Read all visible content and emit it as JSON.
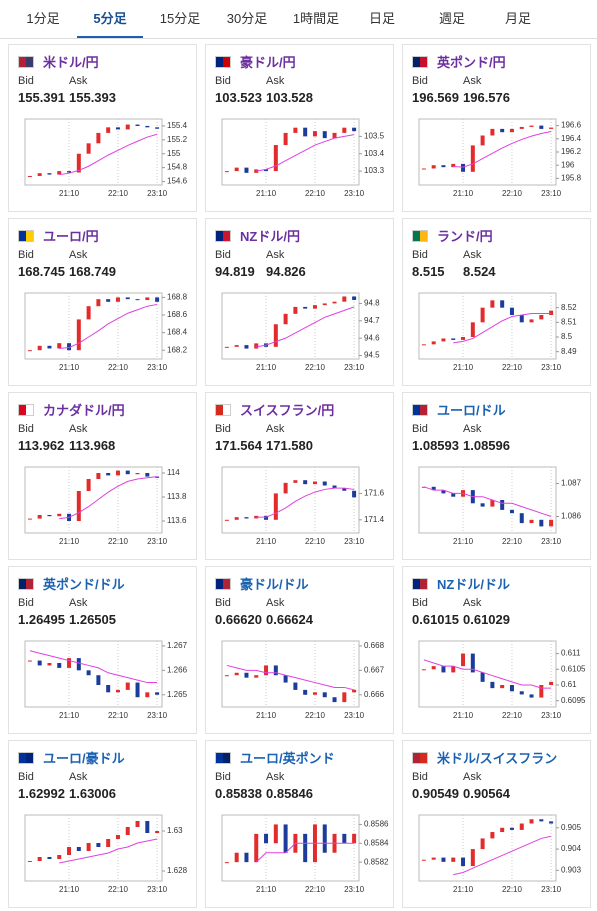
{
  "tabs": [
    "1分足",
    "5分足",
    "15分足",
    "30分足",
    "1時間足",
    "日足",
    "週足",
    "月足"
  ],
  "active_tab": 1,
  "labels": {
    "bid": "Bid",
    "ask": "Ask"
  },
  "cards": [
    {
      "pair": "米ドル/円",
      "title_color": "#6b2fa0",
      "flag_colors": [
        "#b22234",
        "#3c3b6e"
      ],
      "bid": "155.391",
      "ask": "155.393",
      "chart": {
        "categories": [
          null,
          null,
          null,
          null,
          "21:10",
          null,
          null,
          null,
          null,
          "22:10",
          null,
          null,
          null,
          "23:10"
        ],
        "values": [
          154.68,
          154.72,
          154.7,
          154.75,
          154.73,
          155.0,
          155.15,
          155.3,
          155.38,
          155.35,
          155.42,
          155.4,
          155.38,
          155.36
        ],
        "ma": [
          null,
          null,
          null,
          154.7,
          154.72,
          154.76,
          154.82,
          154.9,
          154.98,
          155.05,
          155.12,
          155.18,
          155.24,
          155.28
        ],
        "ylim": [
          154.55,
          155.5
        ],
        "yticks": [
          154.6,
          154.8,
          155,
          155.2,
          155.4
        ]
      }
    },
    {
      "pair": "豪ドル/円",
      "title_color": "#6b2fa0",
      "flag_colors": [
        "#00247d",
        "#cc0000"
      ],
      "bid": "103.523",
      "ask": "103.528",
      "chart": {
        "categories": [
          null,
          null,
          null,
          null,
          "21:10",
          null,
          null,
          null,
          null,
          "22:10",
          null,
          null,
          null,
          "23:10"
        ],
        "values": [
          103.3,
          103.32,
          103.29,
          103.31,
          103.3,
          103.45,
          103.52,
          103.55,
          103.5,
          103.53,
          103.49,
          103.52,
          103.55,
          103.53
        ],
        "ma": [
          null,
          null,
          null,
          103.3,
          103.31,
          103.33,
          103.36,
          103.39,
          103.42,
          103.45,
          103.47,
          103.49,
          103.5,
          103.51
        ],
        "ylim": [
          103.22,
          103.6
        ],
        "yticks": [
          103.3,
          103.4,
          103.5
        ]
      }
    },
    {
      "pair": "英ポンド/円",
      "title_color": "#6b2fa0",
      "flag_colors": [
        "#012169",
        "#c8102e"
      ],
      "bid": "196.569",
      "ask": "196.576",
      "chart": {
        "categories": [
          null,
          null,
          null,
          null,
          "21:10",
          null,
          null,
          null,
          null,
          "22:10",
          null,
          null,
          null,
          "23:10"
        ],
        "values": [
          195.95,
          196.0,
          195.97,
          196.02,
          195.9,
          196.3,
          196.45,
          196.55,
          196.5,
          196.55,
          196.58,
          196.6,
          196.55,
          196.57
        ],
        "ma": [
          null,
          null,
          null,
          195.98,
          195.97,
          196.02,
          196.1,
          196.18,
          196.26,
          196.33,
          196.39,
          196.44,
          196.48,
          196.51
        ],
        "ylim": [
          195.7,
          196.7
        ],
        "yticks": [
          195.8,
          196,
          196.2,
          196.4,
          196.6
        ]
      }
    },
    {
      "pair": "ユーロ/円",
      "title_color": "#6b2fa0",
      "flag_colors": [
        "#003399",
        "#ffcc00"
      ],
      "bid": "168.745",
      "ask": "168.749",
      "chart": {
        "categories": [
          null,
          null,
          null,
          null,
          "21:10",
          null,
          null,
          null,
          null,
          "22:10",
          null,
          null,
          null,
          "23:10"
        ],
        "values": [
          168.2,
          168.25,
          168.22,
          168.28,
          168.2,
          168.55,
          168.7,
          168.78,
          168.75,
          168.8,
          168.78,
          168.77,
          168.8,
          168.75
        ],
        "ma": [
          null,
          null,
          null,
          168.22,
          168.23,
          168.28,
          168.35,
          168.42,
          168.5,
          168.56,
          168.62,
          168.66,
          168.7,
          168.72
        ],
        "ylim": [
          168.1,
          168.85
        ],
        "yticks": [
          168.2,
          168.4,
          168.6,
          168.8
        ]
      }
    },
    {
      "pair": "NZドル/円",
      "title_color": "#6b2fa0",
      "flag_colors": [
        "#00247d",
        "#cc142b"
      ],
      "bid": "94.819",
      "ask": "94.826",
      "chart": {
        "categories": [
          null,
          null,
          null,
          null,
          "21:10",
          null,
          null,
          null,
          null,
          "22:10",
          null,
          null,
          null,
          "23:10"
        ],
        "values": [
          94.55,
          94.56,
          94.54,
          94.57,
          94.55,
          94.68,
          94.74,
          94.78,
          94.77,
          94.79,
          94.8,
          94.81,
          94.84,
          94.82
        ],
        "ma": [
          null,
          null,
          null,
          94.55,
          94.56,
          94.58,
          94.6,
          94.63,
          94.66,
          94.69,
          94.72,
          94.74,
          94.76,
          94.78
        ],
        "ylim": [
          94.48,
          94.86
        ],
        "yticks": [
          94.5,
          94.6,
          94.7,
          94.8
        ]
      }
    },
    {
      "pair": "ランド/円",
      "title_color": "#6b2fa0",
      "flag_colors": [
        "#007a4d",
        "#ffb612"
      ],
      "bid": "8.515",
      "ask": "8.524",
      "chart": {
        "categories": [
          null,
          null,
          null,
          null,
          "21:10",
          null,
          null,
          null,
          null,
          "22:10",
          null,
          null,
          null,
          "23:10"
        ],
        "values": [
          8.495,
          8.497,
          8.499,
          8.498,
          8.5,
          8.51,
          8.52,
          8.525,
          8.52,
          8.515,
          8.51,
          8.512,
          8.515,
          8.518
        ],
        "ma": [
          null,
          null,
          null,
          8.496,
          8.497,
          8.499,
          8.503,
          8.507,
          8.511,
          8.514,
          8.515,
          8.516,
          8.516,
          8.516
        ],
        "ylim": [
          8.485,
          8.53
        ],
        "yticks": [
          8.49,
          8.5,
          8.51,
          8.52
        ]
      }
    },
    {
      "pair": "カナダドル/円",
      "title_color": "#6b2fa0",
      "flag_colors": [
        "#d80621",
        "#ffffff"
      ],
      "bid": "113.962",
      "ask": "113.968",
      "chart": {
        "categories": [
          null,
          null,
          null,
          null,
          "21:10",
          null,
          null,
          null,
          null,
          "22:10",
          null,
          null,
          null,
          "23:10"
        ],
        "values": [
          113.62,
          113.65,
          113.64,
          113.66,
          113.6,
          113.85,
          113.95,
          114.0,
          113.98,
          114.02,
          113.99,
          114.0,
          113.97,
          113.96
        ],
        "ma": [
          null,
          null,
          null,
          113.62,
          113.63,
          113.67,
          113.72,
          113.78,
          113.84,
          113.89,
          113.93,
          113.95,
          113.96,
          113.97
        ],
        "ylim": [
          113.5,
          114.05
        ],
        "yticks": [
          113.6,
          113.8,
          114
        ]
      }
    },
    {
      "pair": "スイスフラン/円",
      "title_color": "#6b2fa0",
      "flag_colors": [
        "#d52b1e",
        "#ffffff"
      ],
      "bid": "171.564",
      "ask": "171.580",
      "chart": {
        "categories": [
          null,
          null,
          null,
          null,
          "21:10",
          null,
          null,
          null,
          null,
          "22:10",
          null,
          null,
          null,
          "23:10"
        ],
        "values": [
          171.4,
          171.42,
          171.41,
          171.43,
          171.4,
          171.6,
          171.68,
          171.7,
          171.67,
          171.69,
          171.66,
          171.64,
          171.62,
          171.57
        ],
        "ma": [
          null,
          null,
          null,
          171.42,
          171.42,
          171.45,
          171.49,
          171.54,
          171.58,
          171.61,
          171.63,
          171.64,
          171.64,
          171.63
        ],
        "ylim": [
          171.3,
          171.8
        ],
        "yticks": [
          171.4,
          171.6
        ]
      }
    },
    {
      "pair": "ユーロ/ドル",
      "title_color": "#1a62b0",
      "flag_colors": [
        "#003399",
        "#b22234"
      ],
      "bid": "1.08593",
      "ask": "1.08596",
      "chart": {
        "categories": [
          null,
          null,
          null,
          null,
          "21:10",
          null,
          null,
          null,
          null,
          "22:10",
          null,
          null,
          null,
          "23:10"
        ],
        "values": [
          1.0869,
          1.0868,
          1.0867,
          1.0866,
          1.0868,
          1.0864,
          1.0863,
          1.0865,
          1.0862,
          1.0861,
          1.0858,
          1.0859,
          1.0857,
          1.0859
        ],
        "ma": [
          1.0869,
          1.0868,
          1.0868,
          1.0867,
          1.0867,
          1.0866,
          1.0866,
          1.0865,
          1.0864,
          1.0864,
          1.0863,
          1.0862,
          1.0861,
          1.086
        ],
        "ylim": [
          1.0855,
          1.0875
        ],
        "yticks": [
          1.086,
          1.087
        ]
      }
    },
    {
      "pair": "英ポンド/ドル",
      "title_color": "#1a62b0",
      "flag_colors": [
        "#012169",
        "#b22234"
      ],
      "bid": "1.26495",
      "ask": "1.26505",
      "chart": {
        "categories": [
          null,
          null,
          null,
          null,
          "21:10",
          null,
          null,
          null,
          null,
          "22:10",
          null,
          null,
          null,
          "23:10"
        ],
        "values": [
          1.2664,
          1.2662,
          1.2663,
          1.2661,
          1.2665,
          1.266,
          1.2658,
          1.2654,
          1.2651,
          1.2652,
          1.2655,
          1.2649,
          1.2651,
          1.265
        ],
        "ma": [
          1.2668,
          1.2667,
          1.2666,
          1.2665,
          1.2664,
          1.2663,
          1.2662,
          1.2661,
          1.2659,
          1.2658,
          1.2657,
          1.2656,
          1.2655,
          1.2655
        ],
        "ylim": [
          1.2645,
          1.2672
        ],
        "yticks": [
          1.265,
          1.266,
          1.267
        ]
      }
    },
    {
      "pair": "豪ドル/ドル",
      "title_color": "#1a62b0",
      "flag_colors": [
        "#00247d",
        "#b22234"
      ],
      "bid": "0.66620",
      "ask": "0.66624",
      "chart": {
        "categories": [
          null,
          null,
          null,
          null,
          "21:10",
          null,
          null,
          null,
          null,
          "22:10",
          null,
          null,
          null,
          "23:10"
        ],
        "values": [
          0.6668,
          0.6669,
          0.6667,
          0.6668,
          0.6672,
          0.6668,
          0.6665,
          0.6662,
          0.666,
          0.6661,
          0.6659,
          0.6657,
          0.6661,
          0.6662
        ],
        "ma": [
          0.6672,
          0.6671,
          0.667,
          0.667,
          0.6669,
          0.6669,
          0.6668,
          0.6667,
          0.6666,
          0.6665,
          0.6664,
          0.6663,
          0.6663,
          0.6662
        ],
        "ylim": [
          0.6655,
          0.6682
        ],
        "yticks": [
          0.666,
          0.667,
          0.668
        ]
      }
    },
    {
      "pair": "NZドル/ドル",
      "title_color": "#1a62b0",
      "flag_colors": [
        "#00247d",
        "#b22234"
      ],
      "bid": "0.61015",
      "ask": "0.61029",
      "chart": {
        "categories": [
          null,
          null,
          null,
          null,
          "21:10",
          null,
          null,
          null,
          null,
          "22:10",
          null,
          null,
          null,
          "23:10"
        ],
        "values": [
          0.6105,
          0.6106,
          0.6104,
          0.6106,
          0.611,
          0.6104,
          0.6101,
          0.6099,
          0.61,
          0.6098,
          0.6097,
          0.6096,
          0.61,
          0.6101
        ],
        "ma": [
          0.6108,
          0.6107,
          0.6106,
          0.6106,
          0.6105,
          0.6105,
          0.6104,
          0.6103,
          0.6102,
          0.6101,
          0.61,
          0.61,
          0.6099,
          0.6099
        ],
        "ylim": [
          0.6093,
          0.6114
        ],
        "yticks": [
          0.6095,
          0.61,
          0.6105,
          0.611
        ]
      }
    },
    {
      "pair": "ユーロ/豪ドル",
      "title_color": "#1a62b0",
      "flag_colors": [
        "#003399",
        "#00247d"
      ],
      "bid": "1.62992",
      "ask": "1.63006",
      "chart": {
        "categories": [
          null,
          null,
          null,
          null,
          "21:10",
          null,
          null,
          null,
          null,
          "22:10",
          null,
          null,
          null,
          "23:10"
        ],
        "values": [
          1.6285,
          1.6287,
          1.6286,
          1.6288,
          1.6292,
          1.629,
          1.6294,
          1.6292,
          1.6296,
          1.6298,
          1.6302,
          1.6305,
          1.6299,
          1.63
        ],
        "ma": [
          null,
          null,
          null,
          1.6284,
          1.6285,
          1.6286,
          1.6287,
          1.6288,
          1.6289,
          1.6291,
          1.6292,
          1.6294,
          1.6295,
          1.6296
        ],
        "ylim": [
          1.6275,
          1.6308
        ],
        "yticks": [
          1.628,
          1.63
        ]
      }
    },
    {
      "pair": "ユーロ/英ポンド",
      "title_color": "#1a62b0",
      "flag_colors": [
        "#003399",
        "#012169"
      ],
      "bid": "0.85838",
      "ask": "0.85846",
      "chart": {
        "categories": [
          null,
          null,
          null,
          null,
          "21:10",
          null,
          null,
          null,
          null,
          "22:10",
          null,
          null,
          null,
          "23:10"
        ],
        "values": [
          0.8582,
          0.8583,
          0.8582,
          0.8585,
          0.8584,
          0.8586,
          0.8583,
          0.8585,
          0.8582,
          0.8586,
          0.8583,
          0.8585,
          0.8584,
          0.8585
        ],
        "ma": [
          null,
          null,
          null,
          0.8582,
          0.8583,
          0.8583,
          0.8583,
          0.8584,
          0.8584,
          0.8584,
          0.8584,
          0.8584,
          0.8584,
          0.8584
        ],
        "ylim": [
          0.858,
          0.8587
        ],
        "yticks": [
          0.8582,
          0.8584,
          0.8586
        ]
      }
    },
    {
      "pair": "米ドル/スイスフラン",
      "title_color": "#1a62b0",
      "flag_colors": [
        "#b22234",
        "#d52b1e"
      ],
      "bid": "0.90549",
      "ask": "0.90564",
      "chart": {
        "categories": [
          null,
          null,
          null,
          null,
          "21:10",
          null,
          null,
          null,
          null,
          "22:10",
          null,
          null,
          null,
          "23:10"
        ],
        "values": [
          0.9035,
          0.9036,
          0.9034,
          0.9036,
          0.9032,
          0.904,
          0.9045,
          0.9048,
          0.905,
          0.9049,
          0.9052,
          0.9054,
          0.9053,
          0.9052
        ],
        "ma": [
          null,
          null,
          null,
          0.9028,
          0.9029,
          0.9031,
          0.9033,
          0.9035,
          0.9037,
          0.9039,
          0.9041,
          0.9043,
          0.9045,
          0.9046
        ],
        "ylim": [
          0.9025,
          0.9056
        ],
        "yticks": [
          0.903,
          0.904,
          0.905
        ]
      }
    }
  ]
}
